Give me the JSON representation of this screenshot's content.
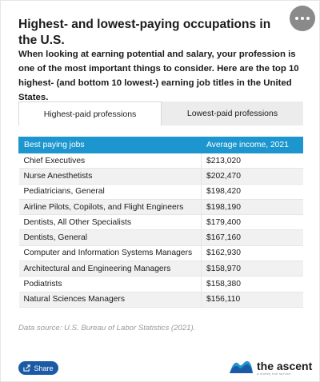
{
  "title": "Highest- and lowest-paying occupations in the U.S.",
  "intro": "When looking at earning potential and salary, your profession is one of the most important things to consider. Here are the top 10 highest- (and bottom 10 lowest-) earning job titles in the United States.",
  "menu": {
    "icon": "more-icon"
  },
  "tabs": [
    {
      "label": "Highest-paid professions",
      "active": true
    },
    {
      "label": "Lowest-paid professions",
      "active": false
    }
  ],
  "table": {
    "headers": [
      "Best paying jobs",
      "Average income, 2021"
    ],
    "header_color": "#1d96cf",
    "rows": [
      [
        "Chief Executives",
        "$213,020"
      ],
      [
        "Nurse Anesthetists",
        "$202,470"
      ],
      [
        "Pediatricians, General",
        "$198,420"
      ],
      [
        "Airline Pilots, Copilots, and Flight Engineers",
        "$198,190"
      ],
      [
        "Dentists, All Other Specialists",
        "$179,400"
      ],
      [
        "Dentists, General",
        "$167,160"
      ],
      [
        "Computer and Information Systems Managers",
        "$162,930"
      ],
      [
        "Architectural and Engineering Managers",
        "$158,970"
      ],
      [
        "Podiatrists",
        "$158,380"
      ],
      [
        "Natural Sciences Managers",
        "$156,110"
      ]
    ]
  },
  "source": "Data source: U.S. Bureau of Labor Statistics (2021).",
  "share": {
    "label": "Share",
    "icon": "share-icon",
    "color": "#1b5aa6"
  },
  "logo": {
    "name": "the ascent",
    "sub": "a motley fool service"
  }
}
